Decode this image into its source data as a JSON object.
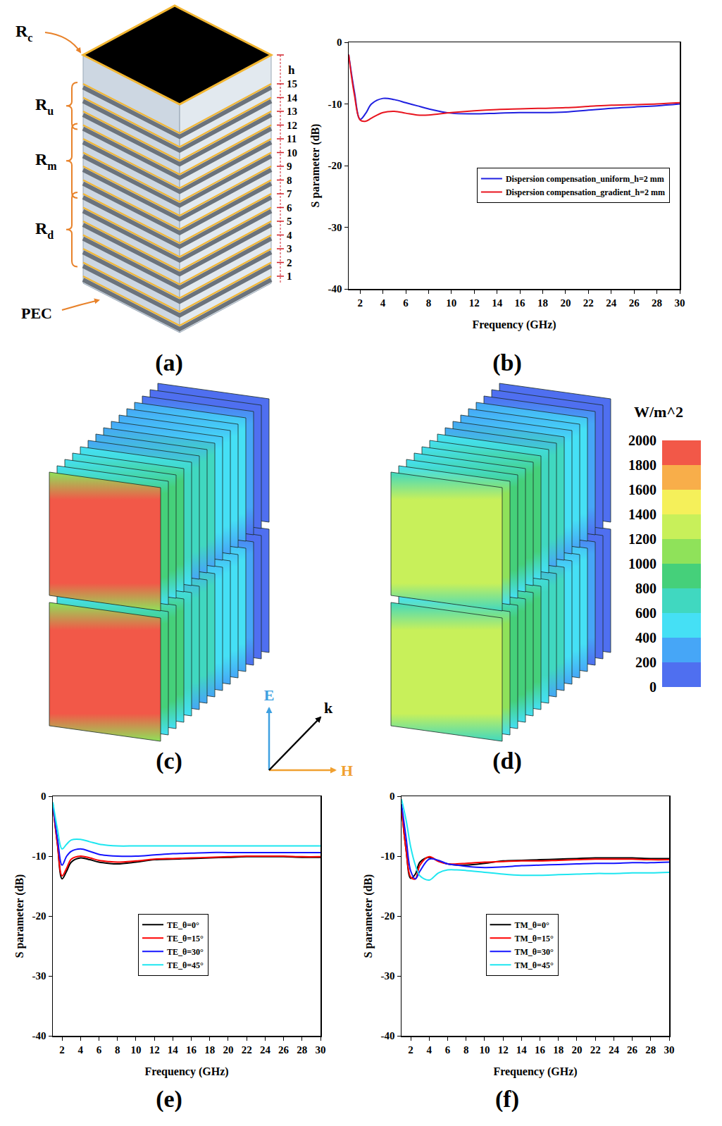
{
  "structure": {
    "panel": "(a)",
    "regions": {
      "cap": {
        "base": "R",
        "sub": "c"
      },
      "upper": {
        "base": "R",
        "sub": "u"
      },
      "middle": {
        "base": "R",
        "sub": "m"
      },
      "lower": {
        "base": "R",
        "sub": "d"
      }
    },
    "layers": [
      1,
      2,
      3,
      4,
      5,
      6,
      7,
      8,
      9,
      10,
      11,
      12,
      13,
      14,
      15
    ],
    "cap_thickness": "h",
    "ground": "PEC"
  },
  "field_maps": {
    "panels": [
      {
        "panel": "(c)",
        "plate_levels": [
          1850,
          900,
          850,
          800,
          750,
          700,
          650,
          600,
          550,
          500,
          450,
          400,
          300,
          150,
          100
        ]
      },
      {
        "panel": "(d)",
        "plate_levels": [
          1300,
          1000,
          950,
          900,
          850,
          800,
          750,
          650,
          600,
          550,
          450,
          400,
          300,
          150,
          100
        ]
      }
    ],
    "colorbar": {
      "unit": "W/m^2",
      "range": [
        0,
        2000
      ],
      "ticks": [
        0,
        200,
        400,
        600,
        800,
        1000,
        1200,
        1400,
        1600,
        1800,
        2000
      ]
    },
    "axes": {
      "vertical": "E",
      "propagation": "k",
      "horizontal": "H"
    }
  },
  "chart_data": [
    {
      "panel": "(b)",
      "type": "line",
      "x_label": "Frequency (GHz)",
      "y_label": "S parameter (dB)",
      "x": [
        1,
        1.5,
        2,
        2.5,
        3,
        4,
        5,
        6,
        7,
        8,
        10,
        12,
        14,
        16,
        18,
        20,
        22,
        24,
        26,
        28,
        30
      ],
      "series": [
        {
          "name": "Dispersion compensation_uniform_h=2 mm",
          "color": "#1f1fe0",
          "values": [
            -2,
            -8,
            -12.5,
            -11.5,
            -10,
            -9.1,
            -9.3,
            -9.8,
            -10.3,
            -10.8,
            -11.5,
            -11.6,
            -11.5,
            -11.4,
            -11.4,
            -11.3,
            -11,
            -10.7,
            -10.5,
            -10.3,
            -10
          ]
        },
        {
          "name": "Dispersion compensation_gradient_h=2 mm",
          "color": "#e8141e",
          "values": [
            -2,
            -8.5,
            -12.6,
            -12.8,
            -12.3,
            -11.4,
            -11.2,
            -11.5,
            -11.8,
            -11.8,
            -11.4,
            -11.1,
            -10.9,
            -10.8,
            -10.7,
            -10.6,
            -10.4,
            -10.2,
            -10.1,
            -10,
            -9.8
          ]
        }
      ],
      "xlim": [
        1,
        30
      ],
      "xticks": [
        2,
        4,
        6,
        8,
        10,
        12,
        14,
        16,
        18,
        20,
        22,
        24,
        26,
        28,
        30
      ],
      "ylim": [
        -40,
        0
      ],
      "yticks": [
        -40,
        -30,
        -20,
        -10,
        0
      ],
      "grid": false,
      "legend": "right"
    },
    {
      "panel": "(e)",
      "type": "line",
      "x_label": "Frequency (GHz)",
      "y_label": "S parameter (dB)",
      "x": [
        1,
        1.5,
        2,
        2.5,
        3,
        4,
        5,
        6,
        7,
        8,
        10,
        12,
        14,
        16,
        18,
        20,
        22,
        24,
        26,
        28,
        30
      ],
      "series": [
        {
          "name": "TE_θ=0°",
          "color": "#000000",
          "values": [
            -1.5,
            -8,
            -13.8,
            -12.5,
            -11,
            -10.3,
            -10.6,
            -11,
            -11.2,
            -11.3,
            -11,
            -10.6,
            -10.5,
            -10.4,
            -10.3,
            -10.2,
            -10.1,
            -10.1,
            -10.1,
            -10.2,
            -10.2
          ]
        },
        {
          "name": "TE_θ=15°",
          "color": "#ff0000",
          "values": [
            -1.5,
            -8,
            -13.3,
            -12,
            -10.5,
            -10,
            -10.3,
            -10.7,
            -10.9,
            -11,
            -10.8,
            -10.5,
            -10.4,
            -10.3,
            -10.2,
            -10.1,
            -10,
            -10,
            -10,
            -10.1,
            -10.1
          ]
        },
        {
          "name": "TE_θ=30°",
          "color": "#1414ff",
          "values": [
            -1.3,
            -7,
            -11.5,
            -10,
            -9.2,
            -8.8,
            -9.2,
            -9.7,
            -9.9,
            -10,
            -10,
            -9.8,
            -9.6,
            -9.5,
            -9.4,
            -9.4,
            -9.4,
            -9.4,
            -9.4,
            -9.4,
            -9.4
          ]
        },
        {
          "name": "TE_θ=45°",
          "color": "#1ee6f0",
          "values": [
            -1,
            -5.5,
            -8.8,
            -8,
            -7.3,
            -7.2,
            -7.6,
            -8,
            -8.2,
            -8.3,
            -8.3,
            -8.3,
            -8.3,
            -8.3,
            -8.3,
            -8.3,
            -8.3,
            -8.3,
            -8.3,
            -8.3,
            -8.3
          ]
        }
      ],
      "xlim": [
        1,
        30
      ],
      "xticks": [
        2,
        4,
        6,
        8,
        10,
        12,
        14,
        16,
        18,
        20,
        22,
        24,
        26,
        28,
        30
      ],
      "ylim": [
        -40,
        0
      ],
      "yticks": [
        -40,
        -30,
        -20,
        -10,
        0
      ],
      "grid": false,
      "legend": "center"
    },
    {
      "panel": "(f)",
      "type": "line",
      "x_label": "Frequency (GHz)",
      "y_label": "S parameter (dB)",
      "x": [
        1,
        1.5,
        2,
        2.5,
        3,
        4,
        5,
        6,
        7,
        8,
        10,
        12,
        14,
        16,
        18,
        20,
        22,
        24,
        26,
        28,
        30
      ],
      "series": [
        {
          "name": "TM_θ=0°",
          "color": "#000000",
          "values": [
            -2,
            -9,
            -13.7,
            -13,
            -11,
            -10.2,
            -10.8,
            -11.3,
            -11.5,
            -11.5,
            -11.2,
            -10.8,
            -10.7,
            -10.6,
            -10.5,
            -10.4,
            -10.3,
            -10.3,
            -10.3,
            -10.4,
            -10.4
          ]
        },
        {
          "name": "TM_θ=15°",
          "color": "#ff0000",
          "values": [
            -2,
            -9,
            -13.5,
            -13.8,
            -11.5,
            -10.1,
            -10.9,
            -11.3,
            -11.3,
            -11.2,
            -11,
            -10.9,
            -10.8,
            -10.8,
            -10.7,
            -10.6,
            -10.5,
            -10.5,
            -10.5,
            -10.6,
            -10.6
          ]
        },
        {
          "name": "TM_θ=30°",
          "color": "#1414ff",
          "values": [
            -1.3,
            -7,
            -12.5,
            -13.8,
            -12.5,
            -10.5,
            -10.7,
            -11.3,
            -11.5,
            -11.7,
            -11.9,
            -11.8,
            -11.6,
            -11.5,
            -11.4,
            -11.3,
            -11.2,
            -11.2,
            -11.1,
            -11.1,
            -11
          ]
        },
        {
          "name": "TM_θ=45°",
          "color": "#1ee6f0",
          "values": [
            -0.5,
            -4,
            -8.5,
            -11.5,
            -13.3,
            -14,
            -12.8,
            -12.3,
            -12.3,
            -12.4,
            -12.7,
            -13,
            -13.2,
            -13.2,
            -13.1,
            -13,
            -12.9,
            -12.9,
            -12.8,
            -12.8,
            -12.7
          ]
        }
      ],
      "xlim": [
        1,
        30
      ],
      "xticks": [
        2,
        4,
        6,
        8,
        10,
        12,
        14,
        16,
        18,
        20,
        22,
        24,
        26,
        28,
        30
      ],
      "ylim": [
        -40,
        0
      ],
      "yticks": [
        -40,
        -30,
        -20,
        -10,
        0
      ],
      "grid": false,
      "legend": "center"
    }
  ]
}
